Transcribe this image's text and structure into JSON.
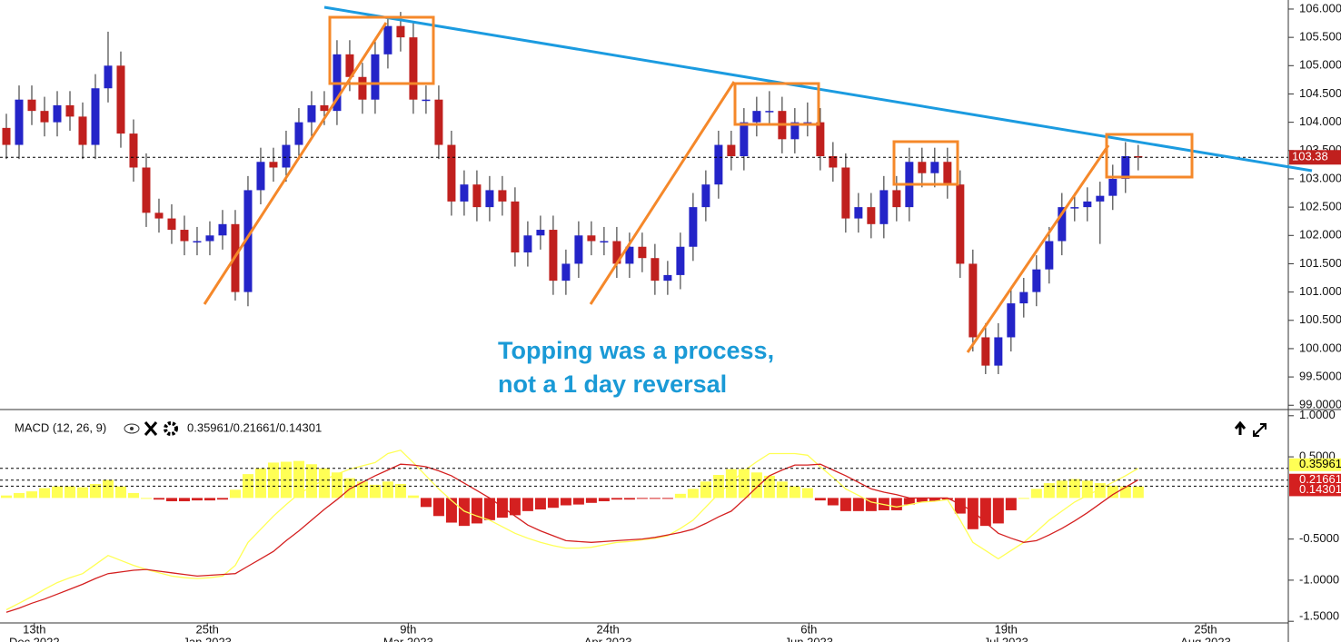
{
  "chart_data": {
    "type": "candlestick",
    "x": [
      0,
      1,
      2,
      3,
      4,
      5,
      6,
      7,
      8,
      9,
      10,
      11,
      12,
      13,
      14,
      15,
      16,
      17,
      18,
      19,
      20,
      21,
      22,
      23,
      24,
      25,
      26,
      27,
      28,
      29,
      30,
      31,
      32,
      33,
      34,
      35,
      36,
      37,
      38,
      39,
      40,
      41,
      42,
      43,
      44,
      45,
      46,
      47,
      48,
      49,
      50,
      51,
      52,
      53,
      54,
      55,
      56,
      57,
      58,
      59,
      60,
      61,
      62,
      63,
      64,
      65,
      66,
      67,
      68,
      69,
      70,
      71,
      72,
      73,
      74,
      75,
      76,
      77,
      78,
      79,
      80,
      81,
      82,
      83,
      84,
      85,
      86,
      87,
      88,
      89
    ],
    "open": [
      103.9,
      103.6,
      104.4,
      104.2,
      104.0,
      104.3,
      104.1,
      103.6,
      104.6,
      105.0,
      103.8,
      103.2,
      102.4,
      102.3,
      102.1,
      101.9,
      101.9,
      102.0,
      102.2,
      101.0,
      102.8,
      103.3,
      103.2,
      103.6,
      104.0,
      104.3,
      104.2,
      105.2,
      104.8,
      104.4,
      105.2,
      105.7,
      105.5,
      104.4,
      104.4,
      103.6,
      102.6,
      102.9,
      102.5,
      102.8,
      102.6,
      101.7,
      102.0,
      102.1,
      101.2,
      101.5,
      102.0,
      101.9,
      101.9,
      101.5,
      101.8,
      101.6,
      101.2,
      101.3,
      101.8,
      102.5,
      102.9,
      103.6,
      103.4,
      104.0,
      104.2,
      104.2,
      103.7,
      104.0,
      104.0,
      103.4,
      103.2,
      102.3,
      102.5,
      102.2,
      102.8,
      102.5,
      103.3,
      103.1,
      103.3,
      102.9,
      101.5,
      100.2,
      99.7,
      100.2,
      100.8,
      101.0,
      101.4,
      101.9,
      102.5,
      102.5,
      102.6,
      102.7,
      103.0,
      103.4
    ],
    "high": [
      104.15,
      104.65,
      104.65,
      104.45,
      104.55,
      104.55,
      104.35,
      104.85,
      105.6,
      105.25,
      104.05,
      103.45,
      102.65,
      102.55,
      102.35,
      102.15,
      102.25,
      102.45,
      102.45,
      103.05,
      103.55,
      103.55,
      103.85,
      104.25,
      104.55,
      104.55,
      105.45,
      105.45,
      105.05,
      105.45,
      105.85,
      105.95,
      105.75,
      104.65,
      104.65,
      103.85,
      103.15,
      103.15,
      103.05,
      103.05,
      102.85,
      102.25,
      102.35,
      102.35,
      101.75,
      102.25,
      102.25,
      102.15,
      102.15,
      102.05,
      102.05,
      101.85,
      101.55,
      102.05,
      102.75,
      103.15,
      103.85,
      103.85,
      104.25,
      104.45,
      104.55,
      104.45,
      104.25,
      104.35,
      104.25,
      103.65,
      103.45,
      102.75,
      102.75,
      103.05,
      103.05,
      103.55,
      103.55,
      103.55,
      103.55,
      103.15,
      101.75,
      100.45,
      100.45,
      101.05,
      101.25,
      101.65,
      102.15,
      102.75,
      102.75,
      102.85,
      102.95,
      103.25,
      103.65,
      103.6
    ],
    "low": [
      103.35,
      103.35,
      103.95,
      103.75,
      103.75,
      103.85,
      103.35,
      103.35,
      104.35,
      103.55,
      102.95,
      102.15,
      102.05,
      101.85,
      101.65,
      101.65,
      101.65,
      101.75,
      100.85,
      100.75,
      102.55,
      102.95,
      102.95,
      103.35,
      103.75,
      103.95,
      103.95,
      104.55,
      104.15,
      104.15,
      104.95,
      105.25,
      104.15,
      104.15,
      103.35,
      102.35,
      102.35,
      102.25,
      102.25,
      102.35,
      101.45,
      101.45,
      101.75,
      100.95,
      100.95,
      101.25,
      101.65,
      101.65,
      101.25,
      101.25,
      101.35,
      100.95,
      100.95,
      101.05,
      101.55,
      102.25,
      102.65,
      103.15,
      103.15,
      103.75,
      103.95,
      103.45,
      103.45,
      103.75,
      103.15,
      102.95,
      102.05,
      102.05,
      101.95,
      101.95,
      102.25,
      102.25,
      102.85,
      102.85,
      102.65,
      101.25,
      99.95,
      99.55,
      99.55,
      99.95,
      100.55,
      100.75,
      101.15,
      101.65,
      102.25,
      102.25,
      101.85,
      102.45,
      102.75,
      103.15
    ],
    "close": [
      103.6,
      104.4,
      104.2,
      104.0,
      104.3,
      104.1,
      103.6,
      104.6,
      105.0,
      103.8,
      103.2,
      102.4,
      102.3,
      102.1,
      101.9,
      101.9,
      102.0,
      102.2,
      101.0,
      102.8,
      103.3,
      103.2,
      103.6,
      104.0,
      104.3,
      104.2,
      105.2,
      104.8,
      104.4,
      105.2,
      105.7,
      105.5,
      104.4,
      104.4,
      103.6,
      102.6,
      102.9,
      102.5,
      102.8,
      102.6,
      101.7,
      102.0,
      102.1,
      101.2,
      101.5,
      102.0,
      101.9,
      101.9,
      101.5,
      101.8,
      101.6,
      101.2,
      101.3,
      101.8,
      102.5,
      102.9,
      103.6,
      103.4,
      104.0,
      104.2,
      104.2,
      103.7,
      104.0,
      104.0,
      103.4,
      103.2,
      102.3,
      102.5,
      102.2,
      102.8,
      102.5,
      103.3,
      103.1,
      103.3,
      102.9,
      101.5,
      100.2,
      99.7,
      100.2,
      100.8,
      101.0,
      101.4,
      101.9,
      102.5,
      102.5,
      102.6,
      102.7,
      103.0,
      103.4,
      103.38
    ],
    "up_color": "#2424c8",
    "down_color": "#c0201e",
    "ylim": [
      98.94,
      106.16
    ],
    "yticks": [
      {
        "value": 106,
        "label": "106.000"
      },
      {
        "value": 105.5,
        "label": "105.500"
      },
      {
        "value": 105,
        "label": "105.000"
      },
      {
        "value": 104.5,
        "label": "104.500"
      },
      {
        "value": 104,
        "label": "104.000"
      },
      {
        "value": 103.5,
        "label": "103.500"
      },
      {
        "value": 103,
        "label": "103.000"
      },
      {
        "value": 102.5,
        "label": "102.500"
      },
      {
        "value": 102,
        "label": "102.000"
      },
      {
        "value": 101.5,
        "label": "101.500"
      },
      {
        "value": 101,
        "label": "101.000"
      },
      {
        "value": 100.5,
        "label": "100.500"
      },
      {
        "value": 100,
        "label": "100.000"
      },
      {
        "value": 99.5,
        "label": "99.5000"
      },
      {
        "value": 99,
        "label": "99.0000"
      }
    ],
    "xlim": [
      -0.5,
      100.8
    ],
    "xticks": [
      {
        "value": 2.2,
        "label": "13th",
        "sublabel": "Dec 2022"
      },
      {
        "value": 15.8,
        "label": "25th",
        "sublabel": "Jan 2023"
      },
      {
        "value": 31.6,
        "label": "9th",
        "sublabel": "Mar 2023"
      },
      {
        "value": 47.3,
        "label": "24th",
        "sublabel": "Apr 2023"
      },
      {
        "value": 63.1,
        "label": "6th",
        "sublabel": "Jun 2023"
      },
      {
        "value": 78.6,
        "label": "19th",
        "sublabel": "Jul 2023"
      },
      {
        "value": 94.3,
        "label": "25th",
        "sublabel": "Aug 2023"
      }
    ],
    "last_price": 103.38,
    "annotation": [
      "Topping was a process,",
      "not a 1 day reversal"
    ],
    "macd": {
      "title": "MACD (12, 26, 9)",
      "readout": "0.35961/0.21661/0.14301",
      "ylim": [
        -1.52,
        1.02
      ],
      "yticks": [
        {
          "value": 1,
          "label": "1.0000"
        },
        {
          "value": 0.5,
          "label": "0.5000"
        },
        {
          "value": -0.5,
          "label": "-0.5000"
        },
        {
          "value": -1,
          "label": "-1.0000"
        },
        {
          "value": -1.5,
          "label": "-1.5000"
        }
      ],
      "series": [
        {
          "color": "#ffff55",
          "values": [
            -1.36,
            -1.28,
            -1.2,
            -1.11,
            -1.03,
            -0.97,
            -0.92,
            -0.81,
            -0.7,
            -0.76,
            -0.82,
            -0.87,
            -0.91,
            -0.95,
            -0.97,
            -0.98,
            -0.97,
            -0.95,
            -0.82,
            -0.54,
            -0.38,
            -0.22,
            -0.08,
            0.05,
            0.14,
            0.22,
            0.29,
            0.35,
            0.39,
            0.43,
            0.54,
            0.58,
            0.43,
            0.27,
            0.11,
            -0.03,
            -0.16,
            -0.22,
            -0.27,
            -0.35,
            -0.43,
            -0.49,
            -0.54,
            -0.58,
            -0.61,
            -0.61,
            -0.6,
            -0.57,
            -0.54,
            -0.53,
            -0.51,
            -0.49,
            -0.46,
            -0.37,
            -0.27,
            -0.11,
            0.05,
            0.19,
            0.33,
            0.44,
            0.54,
            0.54,
            0.54,
            0.52,
            0.38,
            0.25,
            0.11,
            0.03,
            -0.05,
            -0.08,
            -0.11,
            -0.08,
            -0.05,
            -0.04,
            -0.02,
            -0.27,
            -0.54,
            -0.64,
            -0.74,
            -0.64,
            -0.54,
            -0.41,
            -0.27,
            -0.16,
            -0.05,
            0.03,
            0.11,
            0.19,
            0.27,
            0.36
          ]
        },
        {
          "color": "#d42020",
          "values": [
            -1.39,
            -1.34,
            -1.28,
            -1.23,
            -1.17,
            -1.11,
            -1.05,
            -0.98,
            -0.92,
            -0.9,
            -0.88,
            -0.87,
            -0.89,
            -0.91,
            -0.93,
            -0.95,
            -0.94,
            -0.93,
            -0.92,
            -0.83,
            -0.74,
            -0.65,
            -0.52,
            -0.4,
            -0.27,
            -0.14,
            -0.02,
            0.11,
            0.19,
            0.27,
            0.34,
            0.41,
            0.4,
            0.38,
            0.33,
            0.27,
            0.18,
            0.09,
            0,
            -0.11,
            -0.22,
            -0.33,
            -0.4,
            -0.46,
            -0.52,
            -0.53,
            -0.54,
            -0.53,
            -0.52,
            -0.51,
            -0.5,
            -0.48,
            -0.45,
            -0.42,
            -0.38,
            -0.31,
            -0.23,
            -0.16,
            -0.02,
            0.13,
            0.27,
            0.34,
            0.4,
            0.4,
            0.41,
            0.34,
            0.27,
            0.19,
            0.11,
            0.07,
            0.04,
            0,
            0,
            0,
            0,
            -0.08,
            -0.16,
            -0.3,
            -0.43,
            -0.49,
            -0.54,
            -0.52,
            -0.45,
            -0.37,
            -0.28,
            -0.18,
            -0.07,
            0.04,
            0.13,
            0.22
          ]
        }
      ],
      "histogram": {
        "pos_color": "#ffff55",
        "neg_color": "#d42020",
        "values": [
          0.03,
          0.06,
          0.08,
          0.12,
          0.14,
          0.14,
          0.13,
          0.17,
          0.22,
          0.14,
          0.06,
          0,
          -0.02,
          -0.04,
          -0.04,
          -0.03,
          -0.03,
          -0.02,
          0.1,
          0.29,
          0.36,
          0.43,
          0.44,
          0.45,
          0.41,
          0.36,
          0.31,
          0.24,
          0.2,
          0.16,
          0.2,
          0.17,
          0.03,
          -0.11,
          -0.22,
          -0.3,
          -0.34,
          -0.31,
          -0.27,
          -0.24,
          -0.21,
          -0.16,
          -0.14,
          -0.12,
          -0.09,
          -0.08,
          -0.06,
          -0.04,
          -0.02,
          -0.02,
          -0.01,
          -0.01,
          -0.01,
          0.05,
          0.11,
          0.2,
          0.28,
          0.35,
          0.35,
          0.31,
          0.27,
          0.2,
          0.14,
          0.12,
          -0.03,
          -0.09,
          -0.16,
          -0.16,
          -0.16,
          -0.15,
          -0.15,
          -0.08,
          -0.05,
          -0.04,
          -0.02,
          -0.19,
          -0.38,
          -0.34,
          -0.31,
          -0.15,
          0,
          0.11,
          0.18,
          0.21,
          0.23,
          0.21,
          0.18,
          0.15,
          0.14,
          0.14
        ]
      },
      "last_values": [
        0.35961,
        0.21661,
        0.14301
      ],
      "label_colors": [
        "#ffff55",
        "#d42020",
        "#d42020"
      ]
    }
  }
}
